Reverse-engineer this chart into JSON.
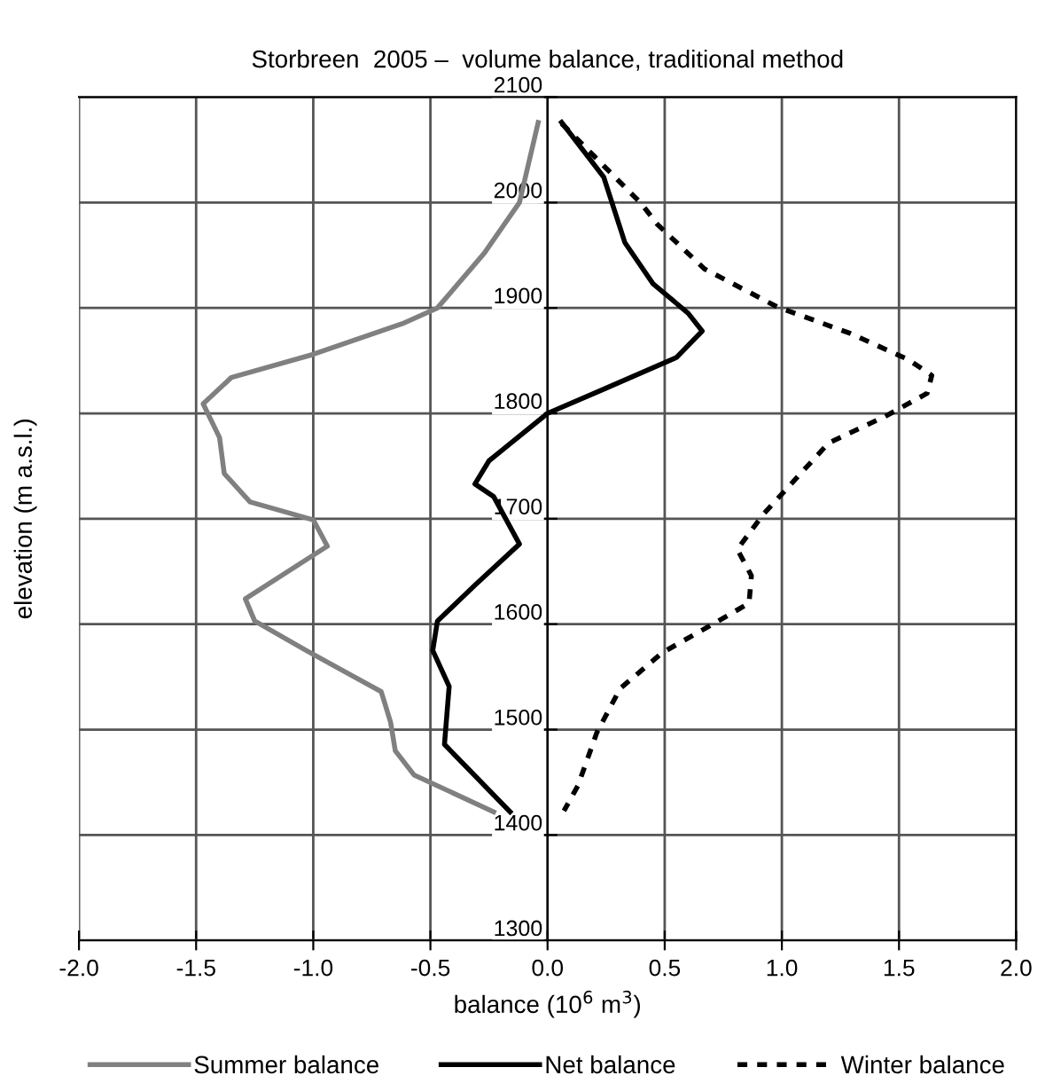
{
  "chart_data": {
    "type": "line",
    "title": "Storbreen  2005 –  volume balance, traditional method",
    "xlabel": "balance (10$^{6}$ m$^{3}$)",
    "ylabel": "elevation (m a.s.l.)",
    "xlim": [
      -2.0,
      2.0
    ],
    "xticks": [
      {
        "value": -2.0,
        "label": "-2.0"
      },
      {
        "value": -1.5,
        "label": "-1.5"
      },
      {
        "value": -1.0,
        "label": "-1.0"
      },
      {
        "value": -0.5,
        "label": "-0.5"
      },
      {
        "value": 0.0,
        "label": "0.0"
      },
      {
        "value": 0.5,
        "label": "0.5"
      },
      {
        "value": 1.0,
        "label": "1.0"
      },
      {
        "value": 1.5,
        "label": "1.5"
      },
      {
        "value": 2.0,
        "label": "2.0"
      }
    ],
    "ylim": [
      1300,
      2100
    ],
    "yticks": [
      1300,
      1400,
      1500,
      1600,
      1700,
      1800,
      1900,
      2000,
      2100
    ],
    "grid": true,
    "legend": "bottom",
    "marker": "none",
    "series": [
      {
        "name": "Summer balance",
        "color": "#808080",
        "line_style": "solid",
        "x": [
          -0.04,
          -0.12,
          -0.27,
          -0.47,
          -0.62,
          -1.0,
          -1.35,
          -1.47,
          -1.4,
          -1.38,
          -1.27,
          -1.0,
          -0.94,
          -1.29,
          -1.25,
          -1.03,
          -0.71,
          -0.67,
          -0.65,
          -0.57,
          -0.23
        ],
        "values": [
          2076,
          2000,
          1952,
          1900,
          1885,
          1856,
          1834,
          1809,
          1777,
          1743,
          1716,
          1699,
          1674,
          1624,
          1603,
          1575,
          1536,
          1507,
          1480,
          1457,
          1422
        ]
      },
      {
        "name": "Net balance",
        "color": "#000000",
        "line_style": "solid",
        "x": [
          0.06,
          0.24,
          0.33,
          0.45,
          0.6,
          0.66,
          0.55,
          0.23,
          0.0,
          -0.25,
          -0.31,
          -0.23,
          -0.12,
          -0.31,
          -0.47,
          -0.49,
          -0.42,
          -0.44,
          -0.16
        ],
        "values": [
          2076,
          2024,
          1962,
          1923,
          1895,
          1878,
          1853,
          1822,
          1800,
          1755,
          1733,
          1721,
          1676,
          1637,
          1603,
          1575,
          1541,
          1486,
          1422
        ]
      },
      {
        "name": "Winter balance",
        "color": "#000000",
        "line_style": "dashed",
        "x": [
          0.06,
          0.4,
          0.47,
          0.67,
          0.98,
          1.29,
          1.54,
          1.64,
          1.62,
          1.44,
          1.2,
          0.92,
          0.81,
          0.87,
          0.86,
          0.76,
          0.49,
          0.31,
          0.21,
          0.13,
          0.07
        ],
        "values": [
          2075,
          1999,
          1979,
          1937,
          1901,
          1876,
          1851,
          1836,
          1819,
          1797,
          1772,
          1704,
          1671,
          1646,
          1620,
          1607,
          1573,
          1539,
          1497,
          1447,
          1423
        ]
      }
    ]
  }
}
